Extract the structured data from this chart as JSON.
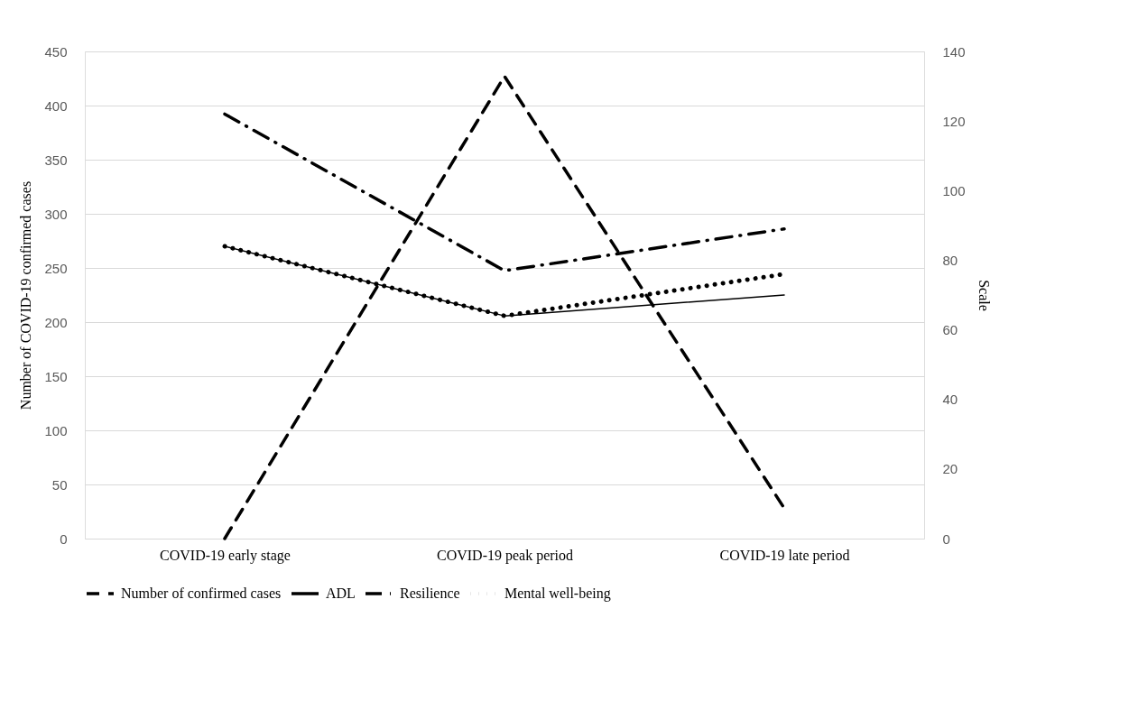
{
  "chart_data": {
    "type": "line",
    "categories": [
      "COVID-19 early stage",
      "COVID-19 peak period",
      "COVID-19 late period"
    ],
    "ylabel": "Number of COVID-19 confirmed cases",
    "y2label": "Scale",
    "ylim": [
      0,
      450
    ],
    "yticks": [
      0,
      50,
      100,
      150,
      200,
      250,
      300,
      350,
      400,
      450
    ],
    "y2lim": [
      0,
      140
    ],
    "y2ticks": [
      0,
      20,
      40,
      60,
      80,
      100,
      120,
      140
    ],
    "grid": "y",
    "legend": "bottom",
    "series": [
      {
        "name": "Number of confirmed cases",
        "color": "#000000",
        "line_style": "dashed",
        "values": [
          0,
          427,
          28
        ]
      },
      {
        "name": "ADL",
        "color": "#000000",
        "line_style": "solid",
        "axis": "y2",
        "values": [
          84,
          64,
          70
        ]
      },
      {
        "name": "Resilience",
        "color": "#000000",
        "line_style": "dashdot",
        "axis": "y2",
        "values": [
          122,
          77,
          89
        ]
      },
      {
        "name": "Mental well-being",
        "color": "#000000",
        "line_style": "dotted",
        "axis": "y2",
        "values": [
          84,
          64,
          76
        ]
      }
    ]
  }
}
